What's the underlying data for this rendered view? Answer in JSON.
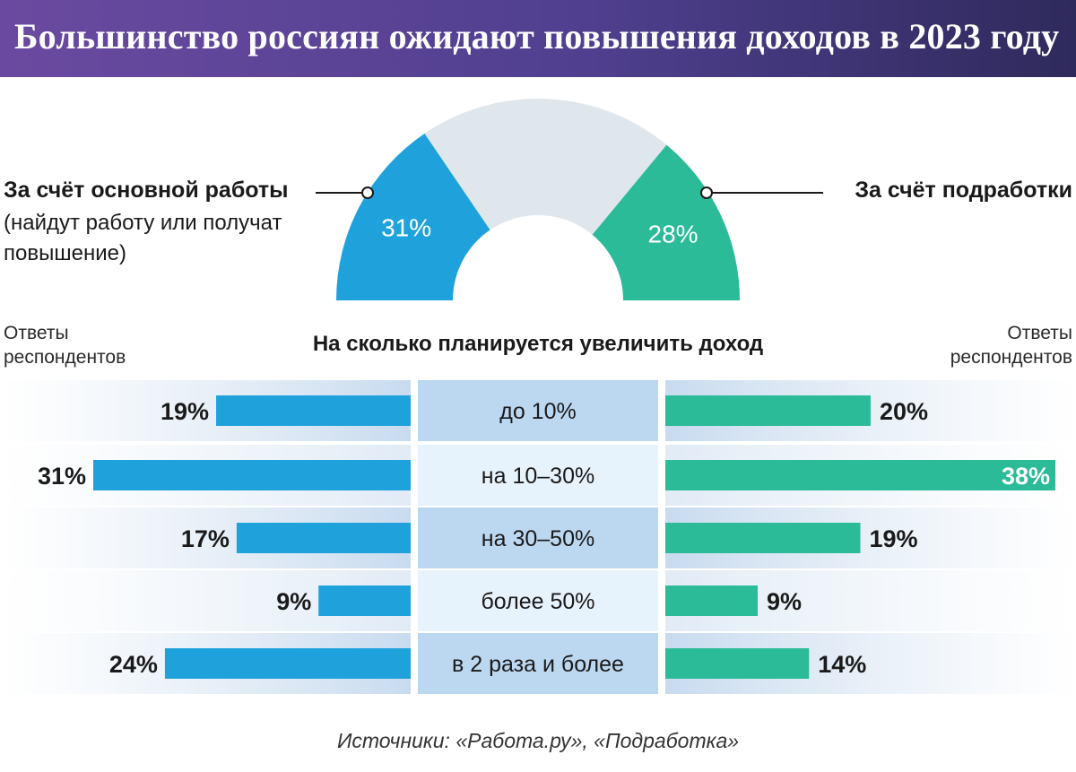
{
  "title": "Большинство россиян ожидают повышения доходов в 2023 году",
  "colors": {
    "blue": "#1fa2dc",
    "green": "#2bbb98",
    "gray": "#dfe6ec",
    "band_dark": "#bcd8f1",
    "band_light": "#e7f3fc"
  },
  "gauge": {
    "left": {
      "label": "За счёт основной работы",
      "sublabel_line1": "(найдут работу или получат",
      "sublabel_line2": "повышение)",
      "value_text": "31%"
    },
    "right": {
      "label": "За счёт подработки",
      "value_text": "28%"
    }
  },
  "respondents_label_line1": "Ответы",
  "respondents_label_line2": "респондентов",
  "chart_title": "На сколько планируется увеличить доход",
  "source": "Источники: «Работа.ру», «Подработка»",
  "chart_data": [
    {
      "type": "pie",
      "variant": "semicircle gauge",
      "slices": [
        {
          "name": "За счёт основной работы",
          "value": 31
        },
        {
          "name": "За счёт подработки",
          "value": 28
        },
        {
          "name": "other",
          "value": 41
        }
      ]
    },
    {
      "type": "bar",
      "orientation": "horizontal",
      "layout": "back-to-back",
      "title": "На сколько планируется увеличить доход",
      "categories": [
        "до 10%",
        "на 10–30%",
        "на 30–50%",
        "более 50%",
        "в 2 раза и более"
      ],
      "series": [
        {
          "name": "За счёт основной работы",
          "values": [
            19,
            31,
            17,
            9,
            24
          ],
          "labels": [
            "19%",
            "31%",
            "17%",
            "9%",
            "24%"
          ]
        },
        {
          "name": "За счёт подработки",
          "values": [
            20,
            38,
            19,
            9,
            14
          ],
          "labels": [
            "20%",
            "38%",
            "19%",
            "9%",
            "14%"
          ]
        }
      ],
      "xlim": [
        0,
        38
      ]
    }
  ]
}
